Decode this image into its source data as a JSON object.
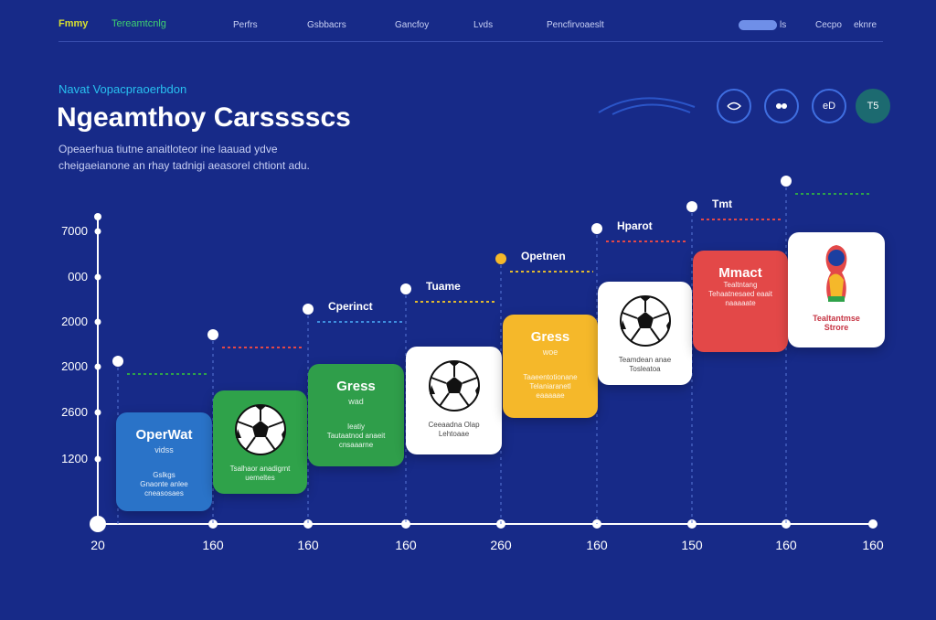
{
  "nav": {
    "logo": "Fmmy",
    "brand": "Tereamtcnlg",
    "links": [
      "Perfrs",
      "Gsbbacrs",
      "Gancfoy",
      "Lvds",
      "Pencfirvoaeslt"
    ],
    "search": "ls",
    "actions": [
      "Cecpo",
      "eknre"
    ]
  },
  "hero": {
    "kicker": "Navat Vopacpraoerbdon",
    "title": "Ngeamthoy Carsssscs",
    "description": [
      "Opeaerhua tiutne anaitloteor ine laauad ydve",
      "cheigaeianone an rhay tadnigi aeasorel chtiont adu."
    ],
    "buttons": [
      "eD",
      "T5"
    ]
  },
  "timeline": {
    "y_labels": [
      "7000",
      "000",
      "2000",
      "2000",
      "2600",
      "1200"
    ],
    "x_labels": [
      "20",
      "160",
      "160",
      "160",
      "260",
      "160",
      "150",
      "160",
      "160"
    ],
    "steps": [
      {
        "card_title": "OperWat",
        "card_sub": "vidss",
        "card_text": [
          "Gslkgs",
          "Gnaonte anlee",
          "cneasosaes"
        ]
      },
      {
        "card_text": [
          "Tsalhaor anadigrnt",
          "uemeltes"
        ]
      },
      {
        "label": "Cperinct",
        "card_title": "Gress",
        "card_sub": "wad",
        "card_text": [
          "Ieatiy",
          "Tautaatnod anaeit",
          "cnsaaarne"
        ]
      },
      {
        "label": "Tuame",
        "card_text": [
          "Ceeaadna Olap",
          "Lehtoaae"
        ]
      },
      {
        "label": "Opetnen",
        "card_title": "Gress",
        "card_sub": "woe",
        "card_text": [
          "Taaeentotionane",
          "Telaniaranetl",
          "eaaaaae"
        ]
      },
      {
        "label": "Hparot",
        "card_text": [
          "Teamdean anae",
          "Tosleatoa"
        ]
      },
      {
        "label": "Tmt",
        "card_title": "Mmact",
        "card_text": [
          "Tealtntang",
          "Tehaatnesaed eaait",
          "naaaaate"
        ]
      },
      {
        "card_text": [
          "Tealtantmse",
          "Strore"
        ]
      }
    ]
  }
}
